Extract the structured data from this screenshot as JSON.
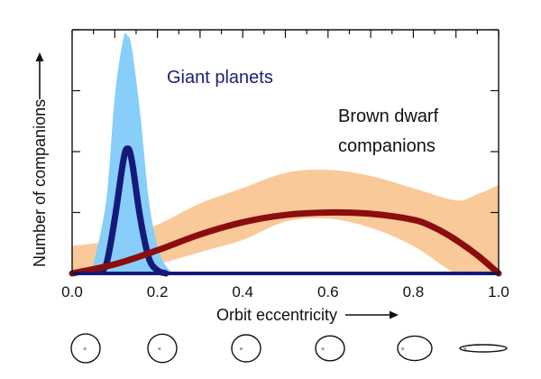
{
  "chart_data": {
    "type": "area",
    "xlabel": "Orbit eccentricity",
    "ylabel": "Number of companions",
    "xlim": [
      0.0,
      1.0
    ],
    "ylim": [
      0,
      4
    ],
    "x_ticks": [
      "0.0",
      "0.2",
      "0.4",
      "0.6",
      "0.8",
      "1.0"
    ],
    "x_tick_values": [
      0.0,
      0.2,
      0.4,
      0.6,
      0.8,
      1.0
    ],
    "y_ticks": [
      0,
      1,
      2,
      3,
      4
    ],
    "grid": false,
    "annotations": [
      {
        "text": "Giant planets",
        "color": "#1a1f7a"
      },
      {
        "text": "Brown dwarf",
        "color": "#111111"
      },
      {
        "text": "companions",
        "color": "#111111"
      }
    ],
    "series": [
      {
        "color": "#87cefa",
        "style": "band",
        "x": [
          0.05,
          0.08,
          0.1,
          0.12,
          0.13,
          0.14,
          0.16,
          0.18,
          0.2,
          0.22,
          0.24
        ],
        "upper": [
          0.15,
          1.2,
          2.9,
          3.85,
          3.9,
          3.7,
          2.6,
          1.2,
          0.45,
          0.12,
          0.0
        ]
      },
      {
        "color": "#141a7a",
        "style": "line",
        "x": [
          0.06,
          0.08,
          0.1,
          0.12,
          0.13,
          0.14,
          0.16,
          0.18,
          0.2,
          0.22
        ],
        "y": [
          0.02,
          0.15,
          0.9,
          1.85,
          2.05,
          1.85,
          0.9,
          0.25,
          0.05,
          0.0
        ]
      },
      {
        "color": "#f9c99a",
        "style": "band",
        "x": [
          0.0,
          0.1,
          0.2,
          0.3,
          0.4,
          0.5,
          0.6,
          0.7,
          0.8,
          0.9,
          0.95,
          1.0
        ],
        "lower": [
          0.0,
          0.0,
          0.15,
          0.35,
          0.55,
          0.85,
          0.9,
          0.75,
          0.45,
          0.0,
          0.0,
          0.0
        ],
        "upper": [
          0.45,
          0.55,
          0.8,
          1.15,
          1.4,
          1.65,
          1.7,
          1.6,
          1.4,
          1.2,
          1.3,
          1.45
        ]
      },
      {
        "color": "#8b0d0d",
        "style": "line",
        "x": [
          0.0,
          0.1,
          0.2,
          0.3,
          0.4,
          0.5,
          0.6,
          0.7,
          0.8,
          0.85,
          0.9,
          0.95,
          1.0
        ],
        "y": [
          0.0,
          0.15,
          0.38,
          0.64,
          0.84,
          0.96,
          1.0,
          0.98,
          0.88,
          0.75,
          0.55,
          0.3,
          0.0
        ]
      }
    ]
  },
  "orbit_icons": [
    0.05,
    0.2,
    0.35,
    0.5,
    0.7,
    0.97
  ]
}
